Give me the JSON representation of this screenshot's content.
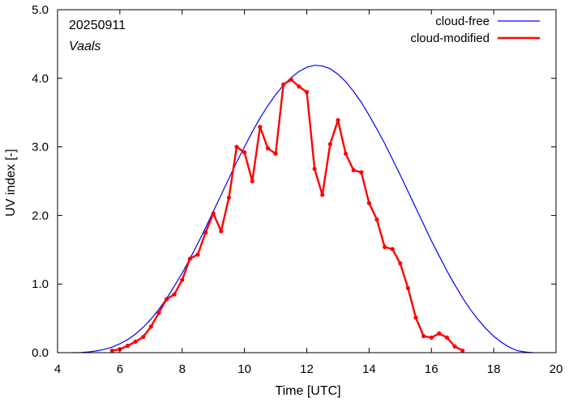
{
  "chart_data": {
    "type": "line",
    "title": "",
    "xlabel": "Time  [UTC]",
    "ylabel": "UV index  [-]",
    "xlim": [
      4,
      20
    ],
    "ylim": [
      0,
      5
    ],
    "xticks": [
      4,
      6,
      8,
      10,
      12,
      14,
      16,
      18,
      20
    ],
    "xtick_labels": [
      "4",
      "6",
      "8",
      "10",
      "12",
      "14",
      "16",
      "18",
      "20"
    ],
    "yticks": [
      0,
      1,
      2,
      3,
      4,
      5
    ],
    "ytick_labels": [
      "0.0",
      "1.0",
      "2.0",
      "3.0",
      "4.0",
      "5.0"
    ],
    "annotations": {
      "date": "20250911",
      "location": "Vaals"
    },
    "legend_position": "top-right",
    "series": [
      {
        "name": "cloud-free",
        "color": "#0000ff",
        "marker": "none",
        "points": [
          [
            4.5,
            0.0
          ],
          [
            4.75,
            0.002
          ],
          [
            5.0,
            0.01
          ],
          [
            5.25,
            0.025
          ],
          [
            5.5,
            0.048
          ],
          [
            5.75,
            0.08
          ],
          [
            6.0,
            0.13
          ],
          [
            6.25,
            0.19
          ],
          [
            6.5,
            0.27
          ],
          [
            6.75,
            0.37
          ],
          [
            7.0,
            0.49
          ],
          [
            7.25,
            0.63
          ],
          [
            7.5,
            0.79
          ],
          [
            7.75,
            0.97
          ],
          [
            8.0,
            1.16
          ],
          [
            8.25,
            1.37
          ],
          [
            8.5,
            1.59
          ],
          [
            8.75,
            1.82
          ],
          [
            9.0,
            2.06
          ],
          [
            9.25,
            2.3
          ],
          [
            9.5,
            2.54
          ],
          [
            9.75,
            2.78
          ],
          [
            10.0,
            3.0
          ],
          [
            10.25,
            3.22
          ],
          [
            10.5,
            3.42
          ],
          [
            10.75,
            3.6
          ],
          [
            11.0,
            3.76
          ],
          [
            11.25,
            3.9
          ],
          [
            11.5,
            4.01
          ],
          [
            11.75,
            4.1
          ],
          [
            12.0,
            4.16
          ],
          [
            12.25,
            4.19
          ],
          [
            12.5,
            4.18
          ],
          [
            12.75,
            4.14
          ],
          [
            13.0,
            4.06
          ],
          [
            13.25,
            3.95
          ],
          [
            13.5,
            3.81
          ],
          [
            13.75,
            3.65
          ],
          [
            14.0,
            3.46
          ],
          [
            14.25,
            3.26
          ],
          [
            14.5,
            3.05
          ],
          [
            14.75,
            2.82
          ],
          [
            15.0,
            2.59
          ],
          [
            15.25,
            2.35
          ],
          [
            15.5,
            2.11
          ],
          [
            15.75,
            1.87
          ],
          [
            16.0,
            1.63
          ],
          [
            16.25,
            1.41
          ],
          [
            16.5,
            1.19
          ],
          [
            16.75,
            0.99
          ],
          [
            17.0,
            0.8
          ],
          [
            17.25,
            0.63
          ],
          [
            17.5,
            0.48
          ],
          [
            17.75,
            0.35
          ],
          [
            18.0,
            0.24
          ],
          [
            18.25,
            0.15
          ],
          [
            18.5,
            0.08
          ],
          [
            18.75,
            0.03
          ],
          [
            19.0,
            0.01
          ],
          [
            19.25,
            0.0
          ]
        ]
      },
      {
        "name": "cloud-modified",
        "color": "#ff0000",
        "marker": "circle",
        "points": [
          [
            5.75,
            0.03
          ],
          [
            6.0,
            0.05
          ],
          [
            6.25,
            0.1
          ],
          [
            6.5,
            0.16
          ],
          [
            6.75,
            0.23
          ],
          [
            7.0,
            0.38
          ],
          [
            7.25,
            0.58
          ],
          [
            7.5,
            0.78
          ],
          [
            7.75,
            0.85
          ],
          [
            8.0,
            1.06
          ],
          [
            8.25,
            1.37
          ],
          [
            8.5,
            1.43
          ],
          [
            8.75,
            1.75
          ],
          [
            9.0,
            2.03
          ],
          [
            9.25,
            1.77
          ],
          [
            9.5,
            2.26
          ],
          [
            9.75,
            3.0
          ],
          [
            10.0,
            2.92
          ],
          [
            10.25,
            2.5
          ],
          [
            10.5,
            3.29
          ],
          [
            10.75,
            2.98
          ],
          [
            11.0,
            2.9
          ],
          [
            11.25,
            3.91
          ],
          [
            11.5,
            3.98
          ],
          [
            11.75,
            3.88
          ],
          [
            12.0,
            3.8
          ],
          [
            12.25,
            2.68
          ],
          [
            12.5,
            2.3
          ],
          [
            12.75,
            3.04
          ],
          [
            13.0,
            3.39
          ],
          [
            13.25,
            2.9
          ],
          [
            13.5,
            2.66
          ],
          [
            13.75,
            2.63
          ],
          [
            14.0,
            2.18
          ],
          [
            14.25,
            1.94
          ],
          [
            14.5,
            1.54
          ],
          [
            14.75,
            1.51
          ],
          [
            15.0,
            1.3
          ],
          [
            15.25,
            0.94
          ],
          [
            15.5,
            0.51
          ],
          [
            15.75,
            0.24
          ],
          [
            16.0,
            0.22
          ],
          [
            16.25,
            0.28
          ],
          [
            16.5,
            0.22
          ],
          [
            16.75,
            0.09
          ],
          [
            17.0,
            0.03
          ]
        ]
      }
    ]
  }
}
